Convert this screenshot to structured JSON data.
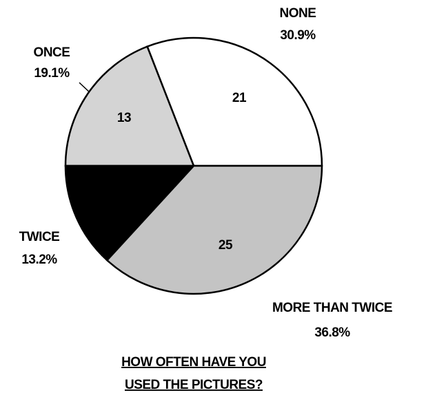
{
  "chart_data": {
    "type": "pie",
    "title": [
      "HOW OFTEN HAVE YOU",
      "USED THE PICTURES?"
    ],
    "categories": [
      "NONE",
      "ONCE",
      "TWICE",
      "MORE THAN TWICE"
    ],
    "values": [
      30.9,
      19.1,
      13.2,
      36.8
    ],
    "value_labels": [
      "30.9%",
      "19.1%",
      "13.2%",
      "36.8%"
    ],
    "counts": [
      21,
      13,
      null,
      25
    ],
    "colors": [
      "#ffffff",
      "#d4d4d4",
      "#000000",
      "#c4c4c4"
    ]
  }
}
